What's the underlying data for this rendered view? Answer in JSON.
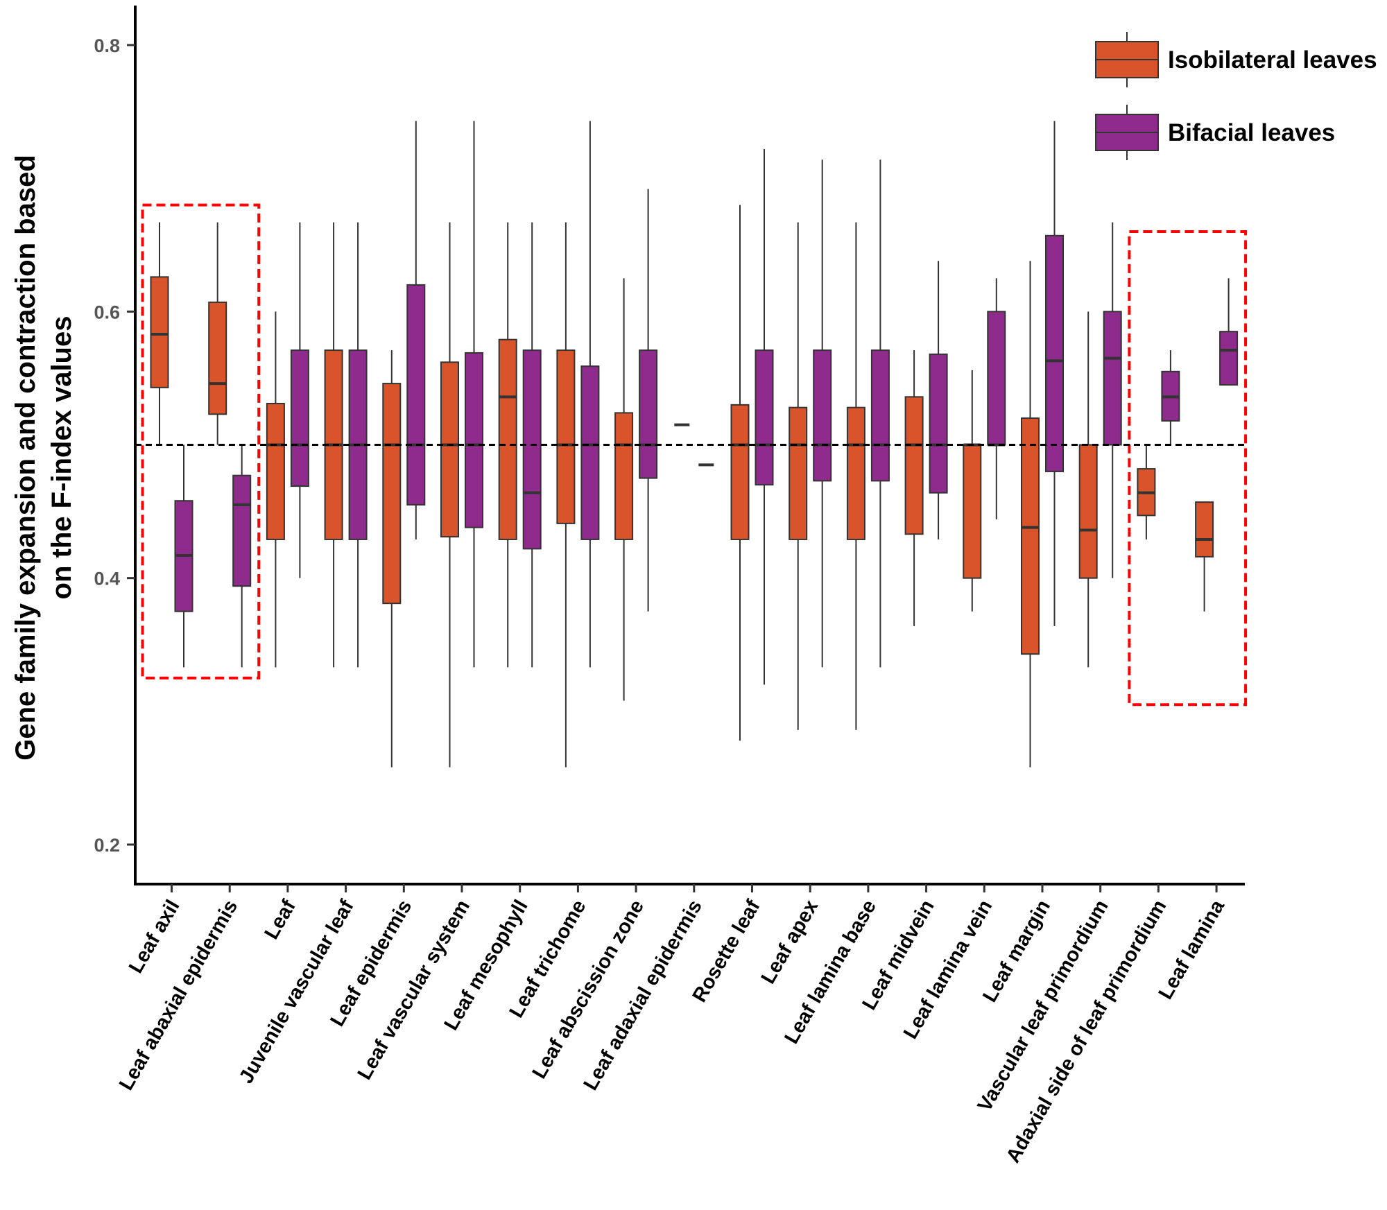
{
  "chart_data": {
    "type": "boxplot",
    "ylabel_lines": [
      "Gene family expansion and contraction based",
      "on the F-index values"
    ],
    "xlabel": "",
    "ylim": [
      0.18,
      0.83
    ],
    "yticks": [
      0.2,
      0.4,
      0.6,
      0.8
    ],
    "ytick_labels": [
      "0.2",
      "0.4",
      "0.6",
      "0.8"
    ],
    "reference_line": 0.5,
    "legend_position": "top-right",
    "categories": [
      "Leaf axil",
      "Leaf abaxial epidermis",
      "Leaf",
      "Juvenile vascular leaf",
      "Leaf epidermis",
      "Leaf vascular system",
      "Leaf mesophyll",
      "Leaf trichome",
      "Leaf abscission zone",
      "Leaf adaxial epidermis",
      "Rosette leaf",
      "Leaf apex",
      "Leaf lamina base",
      "Leaf midvein",
      "Leaf lamina vein",
      "Leaf margin",
      "Vascular leaf primordium",
      "Adaxial side of leaf primordium",
      "Leaf lamina"
    ],
    "series": [
      {
        "name": "Isobilateral leaves",
        "color": "#D9542A",
        "boxes": [
          {
            "min": 0.5,
            "q1": 0.543,
            "median": 0.583,
            "q3": 0.626,
            "max": 0.667
          },
          {
            "min": 0.5,
            "q1": 0.523,
            "median": 0.546,
            "q3": 0.607,
            "max": 0.667
          },
          {
            "min": 0.333,
            "q1": 0.429,
            "median": 0.5,
            "q3": 0.531,
            "max": 0.6
          },
          {
            "min": 0.333,
            "q1": 0.429,
            "median": 0.5,
            "q3": 0.571,
            "max": 0.667
          },
          {
            "min": 0.258,
            "q1": 0.381,
            "median": 0.5,
            "q3": 0.546,
            "max": 0.571
          },
          {
            "min": 0.258,
            "q1": 0.431,
            "median": 0.5,
            "q3": 0.562,
            "max": 0.667
          },
          {
            "min": 0.333,
            "q1": 0.429,
            "median": 0.536,
            "q3": 0.579,
            "max": 0.667
          },
          {
            "min": 0.258,
            "q1": 0.441,
            "median": 0.5,
            "q3": 0.571,
            "max": 0.667
          },
          {
            "min": 0.308,
            "q1": 0.429,
            "median": 0.5,
            "q3": 0.524,
            "max": 0.625
          },
          {
            "min": 0.515,
            "q1": 0.515,
            "median": 0.515,
            "q3": 0.515,
            "max": 0.515
          },
          {
            "min": 0.278,
            "q1": 0.429,
            "median": 0.5,
            "q3": 0.53,
            "max": 0.68
          },
          {
            "min": 0.286,
            "q1": 0.429,
            "median": 0.5,
            "q3": 0.528,
            "max": 0.667
          },
          {
            "min": 0.286,
            "q1": 0.429,
            "median": 0.5,
            "q3": 0.528,
            "max": 0.667
          },
          {
            "min": 0.364,
            "q1": 0.433,
            "median": 0.5,
            "q3": 0.536,
            "max": 0.571
          },
          {
            "min": 0.375,
            "q1": 0.4,
            "median": 0.5,
            "q3": 0.5,
            "max": 0.556
          },
          {
            "min": 0.258,
            "q1": 0.343,
            "median": 0.438,
            "q3": 0.52,
            "max": 0.638
          },
          {
            "min": 0.333,
            "q1": 0.4,
            "median": 0.436,
            "q3": 0.5,
            "max": 0.6
          },
          {
            "min": 0.429,
            "q1": 0.447,
            "median": 0.464,
            "q3": 0.482,
            "max": 0.5
          },
          {
            "min": 0.375,
            "q1": 0.416,
            "median": 0.429,
            "q3": 0.457,
            "max": 0.457
          }
        ]
      },
      {
        "name": "Bifacial leaves",
        "color": "#8E2B8C",
        "boxes": [
          {
            "min": 0.333,
            "q1": 0.375,
            "median": 0.417,
            "q3": 0.458,
            "max": 0.5
          },
          {
            "min": 0.333,
            "q1": 0.394,
            "median": 0.455,
            "q3": 0.477,
            "max": 0.5
          },
          {
            "min": 0.4,
            "q1": 0.469,
            "median": 0.5,
            "q3": 0.571,
            "max": 0.667
          },
          {
            "min": 0.333,
            "q1": 0.429,
            "median": 0.5,
            "q3": 0.571,
            "max": 0.667
          },
          {
            "min": 0.429,
            "q1": 0.455,
            "median": 0.5,
            "q3": 0.62,
            "max": 0.743
          },
          {
            "min": 0.333,
            "q1": 0.438,
            "median": 0.5,
            "q3": 0.569,
            "max": 0.743
          },
          {
            "min": 0.333,
            "q1": 0.422,
            "median": 0.464,
            "q3": 0.571,
            "max": 0.667
          },
          {
            "min": 0.333,
            "q1": 0.429,
            "median": 0.5,
            "q3": 0.559,
            "max": 0.743
          },
          {
            "min": 0.375,
            "q1": 0.475,
            "median": 0.5,
            "q3": 0.571,
            "max": 0.692
          },
          {
            "min": 0.485,
            "q1": 0.485,
            "median": 0.485,
            "q3": 0.485,
            "max": 0.485
          },
          {
            "min": 0.32,
            "q1": 0.47,
            "median": 0.5,
            "q3": 0.571,
            "max": 0.722
          },
          {
            "min": 0.333,
            "q1": 0.473,
            "median": 0.5,
            "q3": 0.571,
            "max": 0.714
          },
          {
            "min": 0.333,
            "q1": 0.473,
            "median": 0.5,
            "q3": 0.571,
            "max": 0.714
          },
          {
            "min": 0.429,
            "q1": 0.464,
            "median": 0.5,
            "q3": 0.568,
            "max": 0.638
          },
          {
            "min": 0.444,
            "q1": 0.5,
            "median": 0.5,
            "q3": 0.6,
            "max": 0.625
          },
          {
            "min": 0.364,
            "q1": 0.48,
            "median": 0.563,
            "q3": 0.657,
            "max": 0.743
          },
          {
            "min": 0.4,
            "q1": 0.5,
            "median": 0.565,
            "q3": 0.6,
            "max": 0.667
          },
          {
            "min": 0.5,
            "q1": 0.518,
            "median": 0.536,
            "q3": 0.555,
            "max": 0.571
          },
          {
            "min": 0.545,
            "q1": 0.545,
            "median": 0.571,
            "q3": 0.585,
            "max": 0.625
          }
        ]
      }
    ],
    "highlighted_groups": [
      [
        "Leaf axil",
        "Leaf abaxial epidermis"
      ],
      [
        "Adaxial side of leaf primordium",
        "Leaf lamina"
      ]
    ],
    "highlight_color": "#FF0000",
    "highlight_range": [
      [
        0.325,
        0.68
      ],
      [
        0.305,
        0.66
      ]
    ]
  }
}
